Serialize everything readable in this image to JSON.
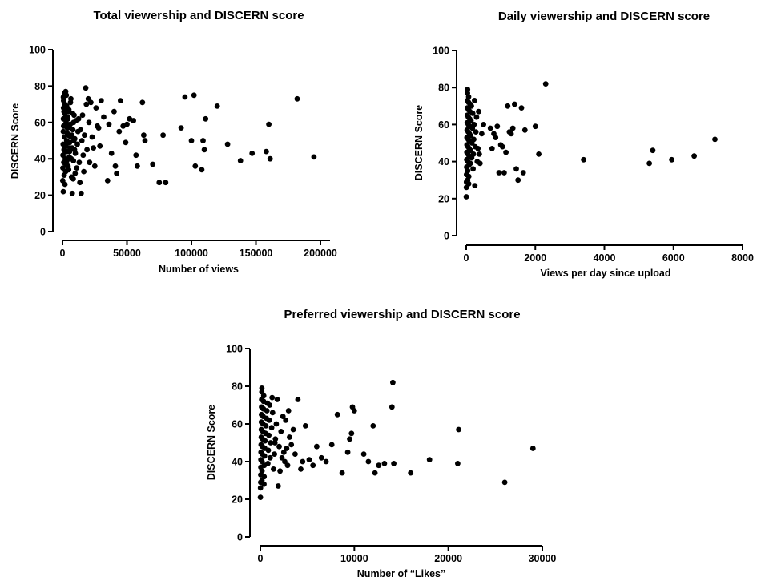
{
  "chart_data": [
    {
      "type": "scatter",
      "title": "Total viewership and DISCERN score",
      "xlabel": "Number of views",
      "ylabel": "DISCERN Score",
      "xlim": [
        0,
        200000
      ],
      "ylim": [
        0,
        100
      ],
      "x_ticks": [
        0,
        50000,
        100000,
        150000,
        200000
      ],
      "y_ticks": [
        0,
        20,
        40,
        60,
        80,
        100
      ],
      "grid": false,
      "legend": "none",
      "points": [
        [
          200,
          28
        ],
        [
          300,
          35
        ],
        [
          400,
          42
        ],
        [
          500,
          48
        ],
        [
          600,
          55
        ],
        [
          700,
          62
        ],
        [
          800,
          68
        ],
        [
          900,
          72
        ],
        [
          1000,
          38
        ],
        [
          1200,
          45
        ],
        [
          1400,
          52
        ],
        [
          1600,
          58
        ],
        [
          1800,
          65
        ],
        [
          2000,
          70
        ],
        [
          2200,
          40
        ],
        [
          2400,
          33
        ],
        [
          2600,
          47
        ],
        [
          2800,
          60
        ],
        [
          3000,
          75
        ],
        [
          3200,
          50
        ],
        [
          3500,
          44
        ],
        [
          3800,
          57
        ],
        [
          4000,
          63
        ],
        [
          4300,
          36
        ],
        [
          4600,
          53
        ],
        [
          5000,
          67
        ],
        [
          5300,
          41
        ],
        [
          5600,
          49
        ],
        [
          6000,
          59
        ],
        [
          6500,
          73
        ],
        [
          7000,
          30
        ],
        [
          7500,
          46
        ],
        [
          8000,
          56
        ],
        [
          8500,
          39
        ],
        [
          9000,
          64
        ],
        [
          9500,
          51
        ],
        [
          10000,
          43
        ],
        [
          10500,
          61
        ],
        [
          11000,
          35
        ],
        [
          12000,
          55
        ],
        [
          1500,
          76
        ],
        [
          2500,
          77
        ],
        [
          700,
          74
        ],
        [
          1100,
          66
        ],
        [
          1300,
          31
        ],
        [
          1900,
          26
        ],
        [
          2100,
          44
        ],
        [
          2700,
          37
        ],
        [
          3300,
          69
        ],
        [
          3700,
          54
        ],
        [
          4200,
          62
        ],
        [
          4800,
          34
        ],
        [
          5200,
          58
        ],
        [
          5800,
          46
        ],
        [
          6200,
          71
        ],
        [
          6800,
          40
        ],
        [
          7200,
          53
        ],
        [
          7800,
          65
        ],
        [
          8300,
          29
        ],
        [
          8800,
          50
        ],
        [
          600,
          22
        ],
        [
          900,
          58
        ],
        [
          1700,
          45
        ],
        [
          2300,
          63
        ],
        [
          2900,
          48
        ],
        [
          3400,
          39
        ],
        [
          4100,
          57
        ],
        [
          4700,
          66
        ],
        [
          5500,
          44
        ],
        [
          6400,
          52
        ],
        [
          7600,
          21
        ],
        [
          8600,
          60
        ],
        [
          9300,
          45
        ],
        [
          9800,
          32
        ],
        [
          11500,
          48
        ],
        [
          12500,
          62
        ],
        [
          13000,
          38
        ],
        [
          13500,
          27
        ],
        [
          14000,
          56
        ],
        [
          14500,
          21
        ],
        [
          15000,
          50
        ],
        [
          15500,
          64
        ],
        [
          16000,
          42
        ],
        [
          16500,
          33
        ],
        [
          17000,
          53
        ],
        [
          18000,
          79
        ],
        [
          18500,
          70
        ],
        [
          19000,
          45
        ],
        [
          20000,
          73
        ],
        [
          20500,
          60
        ],
        [
          21000,
          38
        ],
        [
          22000,
          71
        ],
        [
          23000,
          52
        ],
        [
          24000,
          46
        ],
        [
          25000,
          36
        ],
        [
          26000,
          68
        ],
        [
          27000,
          58
        ],
        [
          28000,
          57
        ],
        [
          29000,
          47
        ],
        [
          30000,
          72
        ],
        [
          32000,
          63
        ],
        [
          35000,
          28
        ],
        [
          36000,
          59
        ],
        [
          38000,
          43
        ],
        [
          40000,
          66
        ],
        [
          41000,
          36
        ],
        [
          42000,
          32
        ],
        [
          44000,
          55
        ],
        [
          45000,
          72
        ],
        [
          47000,
          58
        ],
        [
          49000,
          49
        ],
        [
          50000,
          59
        ],
        [
          52000,
          62
        ],
        [
          55000,
          61
        ],
        [
          57000,
          42
        ],
        [
          58000,
          36
        ],
        [
          62000,
          71
        ],
        [
          63000,
          53
        ],
        [
          64000,
          50
        ],
        [
          70000,
          37
        ],
        [
          75000,
          27
        ],
        [
          78000,
          53
        ],
        [
          80000,
          27
        ],
        [
          92000,
          57
        ],
        [
          95000,
          74
        ],
        [
          100000,
          50
        ],
        [
          102000,
          75
        ],
        [
          103000,
          36
        ],
        [
          108000,
          34
        ],
        [
          109000,
          50
        ],
        [
          110000,
          45
        ],
        [
          111000,
          62
        ],
        [
          120000,
          69
        ],
        [
          128000,
          48
        ],
        [
          138000,
          39
        ],
        [
          147000,
          43
        ],
        [
          158000,
          44
        ],
        [
          160000,
          59
        ],
        [
          161000,
          40
        ],
        [
          182000,
          73
        ],
        [
          195000,
          41
        ]
      ]
    },
    {
      "type": "scatter",
      "title": "Daily viewership and DISCERN score",
      "xlabel": "Views per day since upload",
      "ylabel": "DISCERN Score",
      "xlim": [
        0,
        8000
      ],
      "ylim": [
        0,
        100
      ],
      "x_ticks": [
        0,
        2000,
        4000,
        6000,
        8000
      ],
      "y_ticks": [
        0,
        20,
        40,
        60,
        80,
        100
      ],
      "grid": false,
      "legend": "none",
      "points": [
        [
          2,
          21
        ],
        [
          5,
          26
        ],
        [
          8,
          29
        ],
        [
          10,
          33
        ],
        [
          12,
          37
        ],
        [
          15,
          41
        ],
        [
          18,
          45
        ],
        [
          20,
          49
        ],
        [
          22,
          53
        ],
        [
          25,
          57
        ],
        [
          28,
          61
        ],
        [
          30,
          65
        ],
        [
          32,
          69
        ],
        [
          35,
          73
        ],
        [
          38,
          77
        ],
        [
          40,
          79
        ],
        [
          42,
          30
        ],
        [
          45,
          35
        ],
        [
          48,
          40
        ],
        [
          50,
          44
        ],
        [
          52,
          48
        ],
        [
          55,
          52
        ],
        [
          58,
          56
        ],
        [
          60,
          60
        ],
        [
          62,
          64
        ],
        [
          65,
          68
        ],
        [
          68,
          72
        ],
        [
          70,
          75
        ],
        [
          72,
          28
        ],
        [
          75,
          32
        ],
        [
          78,
          38
        ],
        [
          80,
          43
        ],
        [
          85,
          47
        ],
        [
          90,
          51
        ],
        [
          95,
          55
        ],
        [
          100,
          59
        ],
        [
          105,
          63
        ],
        [
          110,
          67
        ],
        [
          115,
          71
        ],
        [
          120,
          39
        ],
        [
          125,
          46
        ],
        [
          130,
          54
        ],
        [
          140,
          62
        ],
        [
          150,
          70
        ],
        [
          160,
          42
        ],
        [
          170,
          50
        ],
        [
          180,
          58
        ],
        [
          190,
          66
        ],
        [
          200,
          36
        ],
        [
          210,
          44
        ],
        [
          220,
          52
        ],
        [
          230,
          60
        ],
        [
          240,
          73
        ],
        [
          250,
          27
        ],
        [
          260,
          48
        ],
        [
          280,
          56
        ],
        [
          300,
          64
        ],
        [
          320,
          40
        ],
        [
          340,
          47
        ],
        [
          360,
          67
        ],
        [
          380,
          44
        ],
        [
          400,
          39
        ],
        [
          450,
          55
        ],
        [
          500,
          60
        ],
        [
          700,
          58
        ],
        [
          750,
          47
        ],
        [
          800,
          55
        ],
        [
          850,
          53
        ],
        [
          900,
          59
        ],
        [
          950,
          34
        ],
        [
          1000,
          49
        ],
        [
          1050,
          48
        ],
        [
          1100,
          34
        ],
        [
          1150,
          45
        ],
        [
          1200,
          70
        ],
        [
          1250,
          56
        ],
        [
          1300,
          55
        ],
        [
          1350,
          58
        ],
        [
          1400,
          71
        ],
        [
          1450,
          36
        ],
        [
          1500,
          30
        ],
        [
          1600,
          69
        ],
        [
          1650,
          34
        ],
        [
          1700,
          57
        ],
        [
          2000,
          59
        ],
        [
          2100,
          44
        ],
        [
          2300,
          82
        ],
        [
          3400,
          41
        ],
        [
          5300,
          39
        ],
        [
          5400,
          46
        ],
        [
          5950,
          41
        ],
        [
          6600,
          43
        ],
        [
          7200,
          52
        ]
      ]
    },
    {
      "type": "scatter",
      "title": "Preferred viewership and DISCERN score",
      "xlabel": "Number of “Likes”",
      "ylabel": "DISCERN Score",
      "xlim": [
        0,
        30000
      ],
      "ylim": [
        0,
        100
      ],
      "x_ticks": [
        0,
        10000,
        20000,
        30000
      ],
      "y_ticks": [
        0,
        20,
        40,
        60,
        80,
        100
      ],
      "grid": false,
      "legend": "none",
      "points": [
        [
          10,
          21
        ],
        [
          20,
          26
        ],
        [
          30,
          29
        ],
        [
          40,
          33
        ],
        [
          50,
          37
        ],
        [
          60,
          41
        ],
        [
          70,
          45
        ],
        [
          80,
          49
        ],
        [
          90,
          53
        ],
        [
          100,
          57
        ],
        [
          110,
          61
        ],
        [
          120,
          65
        ],
        [
          130,
          69
        ],
        [
          140,
          73
        ],
        [
          150,
          77
        ],
        [
          160,
          79
        ],
        [
          170,
          30
        ],
        [
          180,
          35
        ],
        [
          190,
          40
        ],
        [
          200,
          44
        ],
        [
          220,
          48
        ],
        [
          240,
          52
        ],
        [
          260,
          56
        ],
        [
          280,
          60
        ],
        [
          300,
          64
        ],
        [
          320,
          68
        ],
        [
          340,
          72
        ],
        [
          360,
          75
        ],
        [
          380,
          28
        ],
        [
          400,
          32
        ],
        [
          420,
          38
        ],
        [
          450,
          43
        ],
        [
          480,
          47
        ],
        [
          500,
          51
        ],
        [
          550,
          55
        ],
        [
          600,
          59
        ],
        [
          650,
          63
        ],
        [
          700,
          67
        ],
        [
          750,
          71
        ],
        [
          800,
          39
        ],
        [
          850,
          46
        ],
        [
          900,
          54
        ],
        [
          950,
          62
        ],
        [
          1000,
          70
        ],
        [
          1050,
          42
        ],
        [
          1100,
          50
        ],
        [
          1200,
          58
        ],
        [
          1300,
          66
        ],
        [
          1400,
          36
        ],
        [
          1500,
          44
        ],
        [
          1600,
          52
        ],
        [
          1700,
          60
        ],
        [
          1800,
          73
        ],
        [
          1900,
          27
        ],
        [
          2000,
          48
        ],
        [
          2200,
          56
        ],
        [
          2400,
          64
        ],
        [
          2600,
          40
        ],
        [
          2800,
          47
        ],
        [
          3000,
          67
        ],
        [
          1250,
          74
        ],
        [
          1550,
          50
        ],
        [
          2100,
          35
        ],
        [
          2300,
          42
        ],
        [
          2500,
          45
        ],
        [
          2700,
          62
        ],
        [
          2900,
          38
        ],
        [
          3100,
          53
        ],
        [
          3300,
          49
        ],
        [
          3500,
          57
        ],
        [
          3700,
          44
        ],
        [
          4000,
          73
        ],
        [
          4300,
          36
        ],
        [
          4500,
          40
        ],
        [
          4800,
          59
        ],
        [
          5200,
          41
        ],
        [
          5600,
          38
        ],
        [
          6000,
          48
        ],
        [
          6500,
          42
        ],
        [
          7000,
          40
        ],
        [
          7600,
          49
        ],
        [
          8200,
          65
        ],
        [
          8700,
          34
        ],
        [
          9300,
          45
        ],
        [
          9500,
          52
        ],
        [
          9700,
          55
        ],
        [
          9800,
          69
        ],
        [
          10000,
          67
        ],
        [
          11000,
          44
        ],
        [
          11500,
          40
        ],
        [
          12000,
          59
        ],
        [
          12200,
          34
        ],
        [
          12600,
          38
        ],
        [
          13200,
          39
        ],
        [
          14000,
          69
        ],
        [
          14100,
          82
        ],
        [
          14200,
          39
        ],
        [
          16000,
          34
        ],
        [
          18000,
          41
        ],
        [
          21000,
          39
        ],
        [
          21100,
          57
        ],
        [
          26000,
          29
        ],
        [
          29000,
          47
        ]
      ]
    }
  ]
}
